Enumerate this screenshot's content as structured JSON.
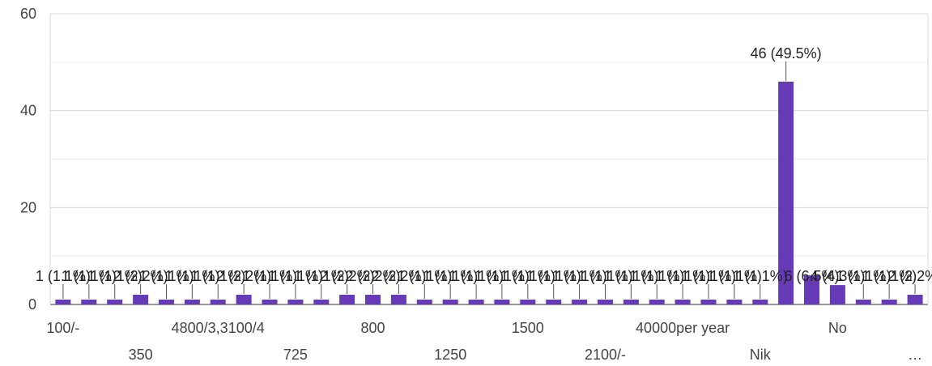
{
  "chart_data": {
    "type": "bar",
    "title": "",
    "xlabel": "",
    "ylabel": "",
    "ylim": [
      0,
      60
    ],
    "yticks": [
      0,
      20,
      40,
      60
    ],
    "grid": true,
    "legend": "none",
    "bar_color": "#673ab7",
    "values": [
      1,
      1,
      1,
      2,
      1,
      1,
      1,
      2,
      1,
      1,
      1,
      2,
      2,
      2,
      1,
      1,
      1,
      1,
      1,
      1,
      1,
      1,
      1,
      1,
      1,
      1,
      1,
      1,
      46,
      6,
      4,
      1,
      1,
      2
    ],
    "data_labels": [
      "1 (1.1%)",
      "1 (1.1%)",
      "1 (1.1%)",
      "2 (2.2%)",
      "1 (1.1%)",
      "1 (1.1%)",
      "1 (1.1%)",
      "2 (2.2%)",
      "1 (1.1%)",
      "1 (1.1%)",
      "1 (1.1%)",
      "2 (2.2%)",
      "2 (2.2%)",
      "2 (2.2%)",
      "1 (1.1%)",
      "1 (1.1%)",
      "1 (1.1%)",
      "1 (1.1%)",
      "1 (1.1%)",
      "1 (1.1%)",
      "1 (1.1%)",
      "1 (1.1%)",
      "1 (1.1%)",
      "1 (1.1%)",
      "1 (1.1%)",
      "1 (1.1%)",
      "1 (1.1%)",
      "1 (1.1%)",
      "46 (49.5%)",
      "6 (6.5%)",
      "4 (4.3%)",
      "1 (1.1%)",
      "1 (1.1%)",
      "2 (2.2%)"
    ],
    "x_tick_labels": [
      {
        "index": 0,
        "text": "100/-",
        "row": 0
      },
      {
        "index": 3,
        "text": "350",
        "row": 1
      },
      {
        "index": 6,
        "text": "4800/3,3100/4",
        "row": 0
      },
      {
        "index": 9,
        "text": "725",
        "row": 1
      },
      {
        "index": 12,
        "text": "800",
        "row": 0
      },
      {
        "index": 15,
        "text": "1250",
        "row": 1
      },
      {
        "index": 18,
        "text": "1500",
        "row": 0
      },
      {
        "index": 21,
        "text": "2100/-",
        "row": 1
      },
      {
        "index": 24,
        "text": "40000per year",
        "row": 0
      },
      {
        "index": 27,
        "text": "Nik",
        "row": 1
      },
      {
        "index": 30,
        "text": "No",
        "row": 0
      },
      {
        "index": 33,
        "text": "…",
        "row": 1
      }
    ]
  }
}
